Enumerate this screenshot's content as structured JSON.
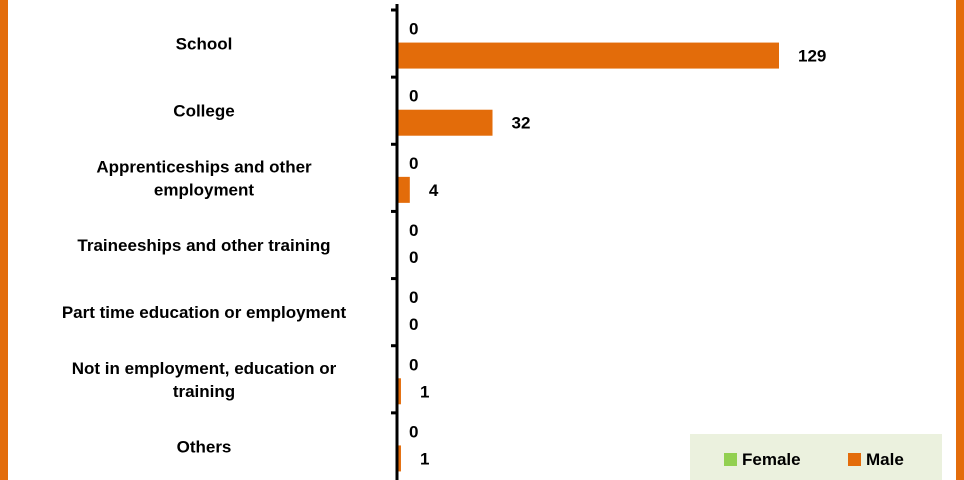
{
  "chart_data": {
    "type": "bar",
    "orientation": "horizontal",
    "categories": [
      "School",
      "College",
      "Apprenticeships and other employment",
      "Traineeships and other training",
      "Part time education or employment",
      "Not in employment, education or training",
      "Others"
    ],
    "category_label_lines": [
      [
        "School"
      ],
      [
        "College"
      ],
      [
        "Apprenticeships and other",
        "employment"
      ],
      [
        "Traineeships and other training"
      ],
      [
        "Part time education or employment"
      ],
      [
        "Not in employment, education or",
        "training"
      ],
      [
        "Others"
      ]
    ],
    "series": [
      {
        "name": "Female",
        "color": "#92D050",
        "values": [
          0,
          0,
          0,
          0,
          0,
          0,
          0
        ]
      },
      {
        "name": "Male",
        "color": "#E36C0A",
        "values": [
          129,
          32,
          4,
          0,
          0,
          1,
          1
        ]
      }
    ],
    "xlim": [
      0,
      145
    ],
    "grid": false,
    "legend": {
      "position": "bottom-right",
      "background": "#EBF1DE"
    },
    "frame_color": "#E36C0A"
  }
}
